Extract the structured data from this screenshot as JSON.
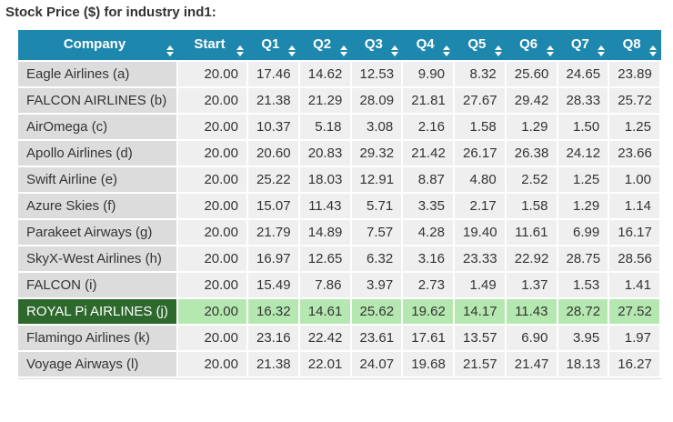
{
  "title": "Stock Price ($) for industry ind1:",
  "colors": {
    "header_bg": "#1e87ae",
    "header_text": "#ffffff",
    "company_cell_bg": "#dcdcdc",
    "value_cell_bg": "#efefef",
    "cell_text": "#333333",
    "highlight_company_bg": "#2d682d",
    "highlight_company_text": "#ffffff",
    "highlight_value_bg": "#b5e8b0"
  },
  "table": {
    "columns": [
      "Company",
      "Start",
      "Q1",
      "Q2",
      "Q3",
      "Q4",
      "Q5",
      "Q6",
      "Q7",
      "Q8"
    ],
    "sort_icon": "sort-up-down-arrows",
    "rows": [
      {
        "company": "Eagle Airlines (a)",
        "highlighted": false,
        "values": [
          "20.00",
          "17.46",
          "14.62",
          "12.53",
          "9.90",
          "8.32",
          "25.60",
          "24.65",
          "23.89"
        ]
      },
      {
        "company": "FALCON AIRLINES (b)",
        "highlighted": false,
        "values": [
          "20.00",
          "21.38",
          "21.29",
          "28.09",
          "21.81",
          "27.67",
          "29.42",
          "28.33",
          "25.72"
        ]
      },
      {
        "company": "AirOmega (c)",
        "highlighted": false,
        "values": [
          "20.00",
          "10.37",
          "5.18",
          "3.08",
          "2.16",
          "1.58",
          "1.29",
          "1.50",
          "1.25"
        ]
      },
      {
        "company": "Apollo Airlines (d)",
        "highlighted": false,
        "values": [
          "20.00",
          "20.60",
          "20.83",
          "29.32",
          "21.42",
          "26.17",
          "26.38",
          "24.12",
          "23.66"
        ]
      },
      {
        "company": "Swift Airline (e)",
        "highlighted": false,
        "values": [
          "20.00",
          "25.22",
          "18.03",
          "12.91",
          "8.87",
          "4.80",
          "2.52",
          "1.25",
          "1.00"
        ]
      },
      {
        "company": "Azure Skies (f)",
        "highlighted": false,
        "values": [
          "20.00",
          "15.07",
          "11.43",
          "5.71",
          "3.35",
          "2.17",
          "1.58",
          "1.29",
          "1.14"
        ]
      },
      {
        "company": "Parakeet Airways (g)",
        "highlighted": false,
        "values": [
          "20.00",
          "21.79",
          "14.89",
          "7.57",
          "4.28",
          "19.40",
          "11.61",
          "6.99",
          "16.17"
        ]
      },
      {
        "company": "SkyX-West Airlines (h)",
        "highlighted": false,
        "values": [
          "20.00",
          "16.97",
          "12.65",
          "6.32",
          "3.16",
          "23.33",
          "22.92",
          "28.75",
          "28.56"
        ]
      },
      {
        "company": "FALCON (i)",
        "highlighted": false,
        "values": [
          "20.00",
          "15.49",
          "7.86",
          "3.97",
          "2.73",
          "1.49",
          "1.37",
          "1.53",
          "1.41"
        ]
      },
      {
        "company": "ROYAL Pi AIRLINES (j)",
        "highlighted": true,
        "values": [
          "20.00",
          "16.32",
          "14.61",
          "25.62",
          "19.62",
          "14.17",
          "11.43",
          "28.72",
          "27.52"
        ]
      },
      {
        "company": "Flamingo Airlines (k)",
        "highlighted": false,
        "values": [
          "20.00",
          "23.16",
          "22.42",
          "23.61",
          "17.61",
          "13.57",
          "6.90",
          "3.95",
          "1.97"
        ]
      },
      {
        "company": "Voyage Airways (l)",
        "highlighted": false,
        "values": [
          "20.00",
          "21.38",
          "22.01",
          "24.07",
          "19.68",
          "21.57",
          "21.47",
          "18.13",
          "16.27"
        ]
      }
    ]
  }
}
